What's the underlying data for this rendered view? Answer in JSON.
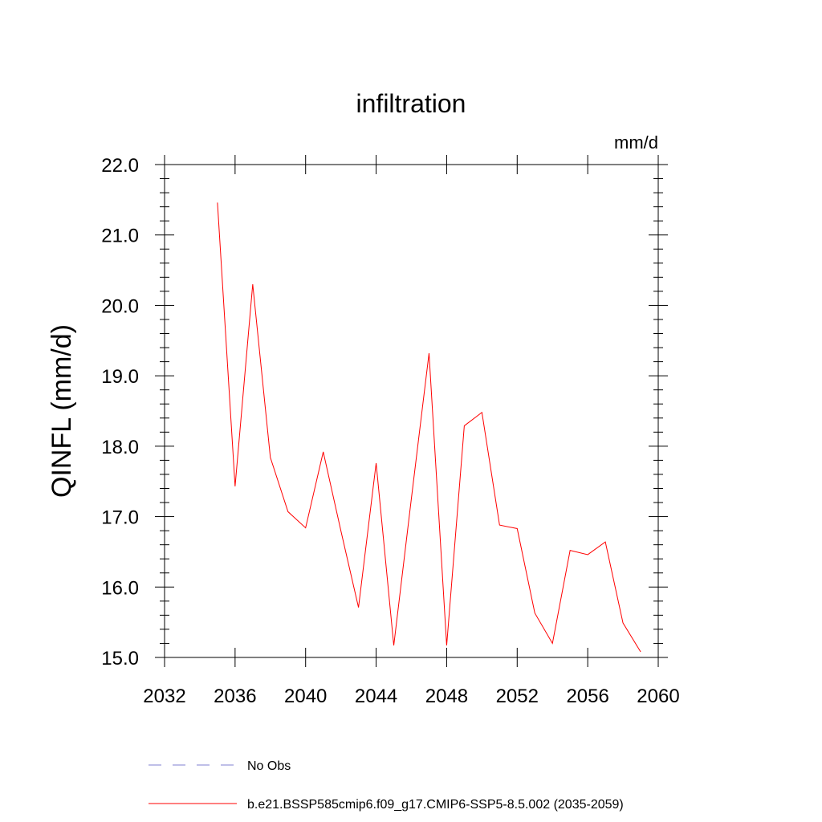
{
  "chart_data": {
    "type": "line",
    "title": "infiltration",
    "units": "mm/d",
    "ylabel": "QINFL  (mm/d)",
    "xlabel": "",
    "xlim": [
      2032,
      2060
    ],
    "ylim": [
      15.0,
      22.0
    ],
    "x_ticks": [
      2032,
      2036,
      2040,
      2044,
      2048,
      2052,
      2056,
      2060
    ],
    "x_tick_labels": [
      "2032",
      "2036",
      "2040",
      "2044",
      "2048",
      "2052",
      "2056",
      "2060"
    ],
    "y_ticks": [
      15.0,
      16.0,
      17.0,
      18.0,
      19.0,
      20.0,
      21.0,
      22.0
    ],
    "y_tick_labels": [
      "15.0",
      "16.0",
      "17.0",
      "18.0",
      "19.0",
      "20.0",
      "21.0",
      "22.0"
    ],
    "grid": false,
    "legend_position": "bottom",
    "series": [
      {
        "name": "b.e21.BSSP585cmip6.f09_g17.CMIP6-SSP5-8.5.002 (2035-2059)",
        "color": "#ff0000",
        "line_style": "solid",
        "x": [
          2035,
          2036,
          2037,
          2038,
          2039,
          2040,
          2041,
          2042,
          2043,
          2044,
          2045,
          2046,
          2047,
          2048,
          2049,
          2050,
          2051,
          2052,
          2053,
          2054,
          2055,
          2056,
          2057,
          2058,
          2059
        ],
        "values": [
          21.46,
          17.43,
          20.3,
          17.84,
          17.07,
          16.84,
          17.92,
          16.8,
          15.71,
          17.76,
          15.17,
          17.26,
          19.32,
          15.17,
          18.29,
          18.48,
          16.88,
          16.83,
          15.63,
          15.2,
          16.52,
          16.46,
          16.64,
          15.49,
          15.08
        ]
      }
    ],
    "legend": [
      {
        "label": "No Obs",
        "color": "#7f7fd0",
        "line_style": "dashed"
      },
      {
        "label": "b.e21.BSSP585cmip6.f09_g17.CMIP6-SSP5-8.5.002 (2035-2059)",
        "color": "#ff0000",
        "line_style": "solid"
      }
    ]
  }
}
